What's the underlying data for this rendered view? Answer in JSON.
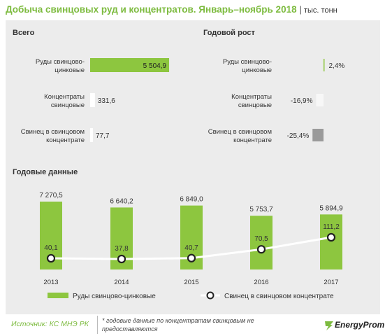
{
  "header": {
    "title": "Добыча свинцовых руд и концентратов. Январь–ноябрь 2018",
    "separator": "|",
    "unit": "тыс. тонн"
  },
  "colors": {
    "accent": "#7dbb3f",
    "bar": "#8dc63f",
    "panel": "#ececec",
    "line": "#ffffff",
    "negative_light": "#f7f7f7",
    "negative_dark": "#9a9a9a"
  },
  "chart_data": [
    {
      "type": "bar",
      "orientation": "horizontal",
      "title": "Всего",
      "categories": [
        "Руды свинцово-цинковые",
        "Концентраты свинцовые",
        "Свинец в свинцовом концентрате"
      ],
      "category_lines": [
        [
          "Руды свинцово-",
          "цинковые"
        ],
        [
          "Концентраты",
          "свинцовые"
        ],
        [
          "Свинец в свинцовом",
          "концентрате"
        ]
      ],
      "values": [
        5504.9,
        331.6,
        77.7
      ],
      "value_labels": [
        "5 504,9",
        "331,6",
        "77,7"
      ],
      "bar_colors": [
        "#8dc63f",
        "#ffffff",
        "#ffffff"
      ],
      "xlim": [
        0,
        5600
      ],
      "grid": false
    },
    {
      "type": "bar",
      "orientation": "horizontal",
      "title": "Годовой рост",
      "unit": "%",
      "categories": [
        "Руды свинцово-цинковые",
        "Концентраты свинцовые",
        "Свинец в свинцовом концентрате"
      ],
      "category_lines": [
        [
          "Руды свинцово-",
          "цинковые"
        ],
        [
          "Концентраты",
          "свинцовые"
        ],
        [
          "Свинец в свинцовом",
          "концентрате"
        ]
      ],
      "values": [
        2.4,
        -16.9,
        -25.4
      ],
      "value_labels": [
        "2,4%",
        "-16,9%",
        "-25,4%"
      ],
      "bar_colors": [
        "#8dc63f",
        "#f7f7f7",
        "#9a9a9a"
      ],
      "grid": false
    },
    {
      "type": "bar",
      "title": "Годовые данные",
      "categories": [
        "2013",
        "2014",
        "2015",
        "2016",
        "2017"
      ],
      "series": [
        {
          "name": "Руды свинцово-цинковые",
          "type": "bar",
          "values": [
            7270.5,
            6640.2,
            6849.0,
            5753.7,
            5894.9
          ],
          "value_labels": [
            "7 270,5",
            "6 640,2",
            "6 849,0",
            "5 753,7",
            "5 894,9"
          ],
          "color": "#8dc63f"
        },
        {
          "name": "Свинец в свинцовом концентрате",
          "type": "line",
          "values": [
            40.1,
            37.8,
            40.7,
            70.5,
            111.2
          ],
          "value_labels": [
            "40,1",
            "37,8",
            "40,7",
            "70,5",
            "111,2"
          ],
          "color": "#ffffff"
        }
      ],
      "legend": "bottom",
      "grid": false
    }
  ],
  "footer": {
    "source": "Источник: КС МНЭ РК",
    "note": "* годовые данные по концентратам свинцовым не предоставляются",
    "logo_text": "EnergyProm"
  }
}
